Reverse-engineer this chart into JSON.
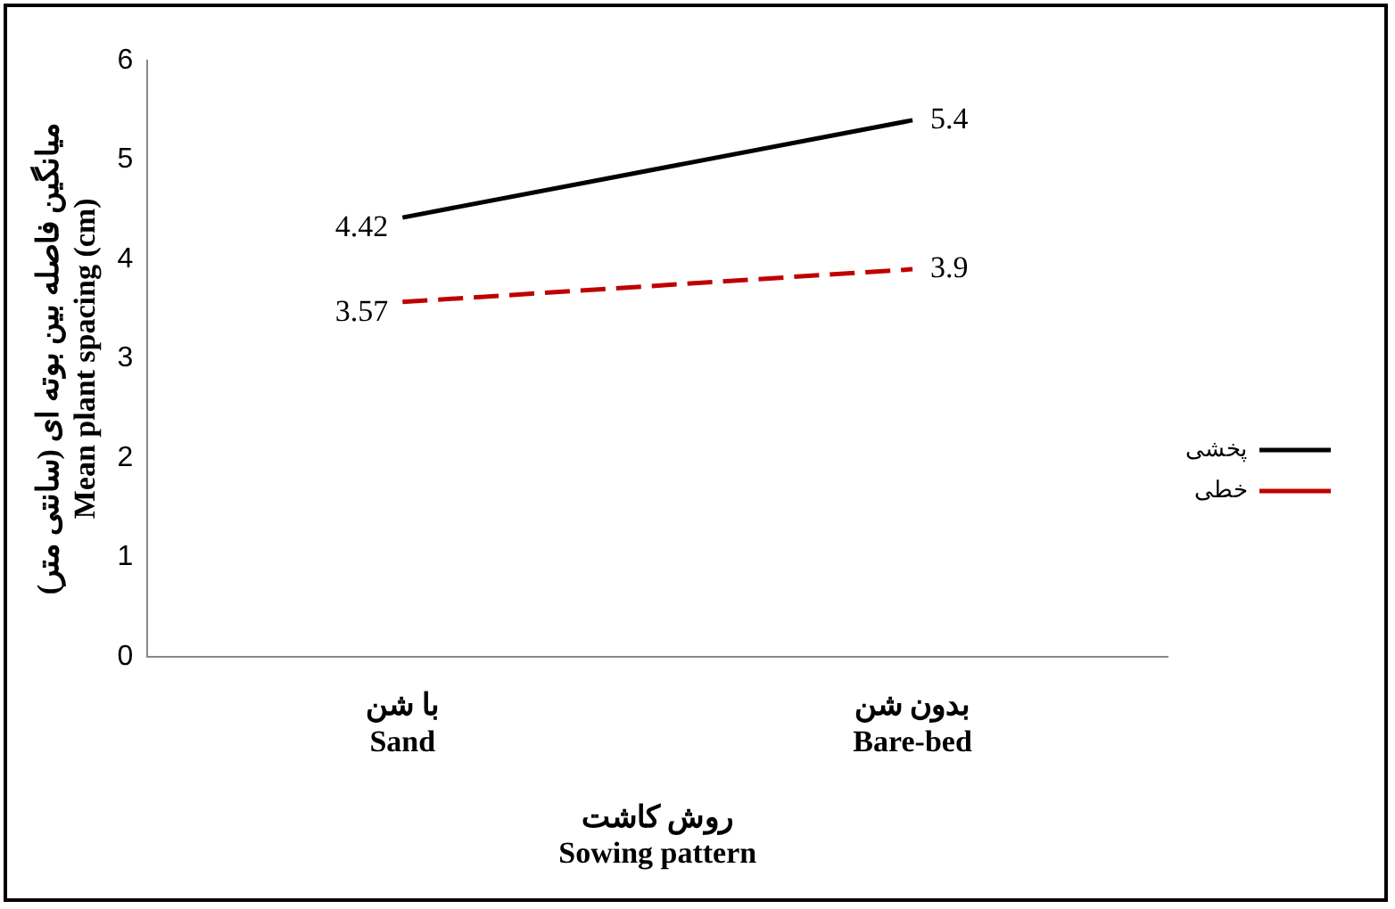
{
  "chart_data": {
    "type": "line",
    "xlabel": "روش کاشت\nSowing pattern",
    "ylabel": "میانگین فاصله بین بوته ای (سانتی متر)\nMean plant spacing (cm)",
    "categories": [
      "با شن\nSand",
      "بدون شن\nBare-bed"
    ],
    "series": [
      {
        "name": "پخشی",
        "color": "#000000",
        "values": [
          4.42,
          5.4
        ],
        "line_style": "solid"
      },
      {
        "name": "خطی",
        "color": "#c00000",
        "values": [
          3.57,
          3.9
        ],
        "line_style": "dashed"
      }
    ],
    "ylim": [
      0,
      6
    ],
    "yticks": [
      0,
      1,
      2,
      3,
      4,
      5,
      6
    ],
    "grid": false,
    "legend": "right",
    "marker": "none",
    "data_labels": true
  }
}
